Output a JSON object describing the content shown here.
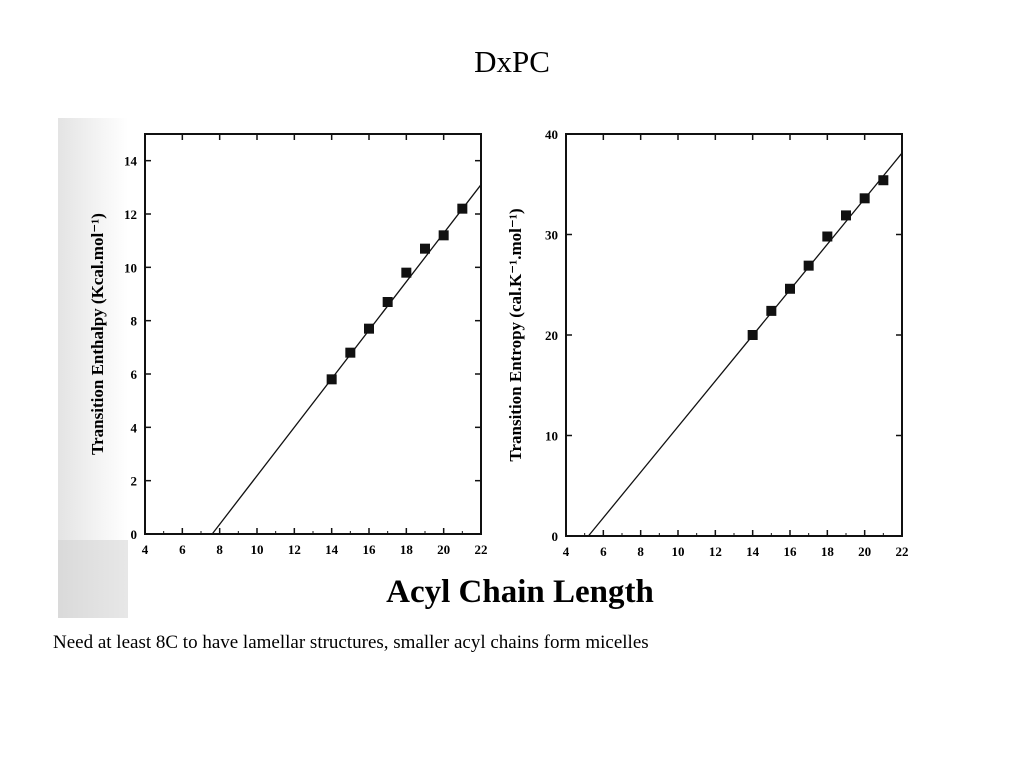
{
  "slide": {
    "title": "DxPC",
    "caption": "Need at least 8C to have lamellar structures, smaller acyl chains form micelles"
  },
  "figure": {
    "shared_xlabel": "Acyl Chain Length"
  },
  "chart_data": [
    {
      "type": "scatter",
      "title": "",
      "xlabel": "",
      "ylabel": "Transition Enthalpy (Kcal.mol⁻¹)",
      "xlim": [
        4,
        22
      ],
      "ylim": [
        0,
        15
      ],
      "xticks": [
        4,
        6,
        8,
        10,
        12,
        14,
        16,
        18,
        20,
        22
      ],
      "yticks": [
        0,
        2,
        4,
        6,
        8,
        10,
        12,
        14
      ],
      "grid": false,
      "series": [
        {
          "x": [
            14,
            15,
            16,
            17,
            18,
            19,
            20,
            21
          ],
          "y": [
            5.8,
            6.8,
            7.7,
            8.7,
            9.8,
            10.7,
            11.2,
            12.2
          ]
        }
      ],
      "fit_line": {
        "x": [
          7.6,
          22
        ],
        "y": [
          0,
          13.1
        ]
      }
    },
    {
      "type": "scatter",
      "title": "",
      "xlabel": "",
      "ylabel": "Transition Entropy (cal.K⁻¹.mol⁻¹)",
      "xlim": [
        4,
        22
      ],
      "ylim": [
        0,
        40
      ],
      "xticks": [
        4,
        6,
        8,
        10,
        12,
        14,
        16,
        18,
        20,
        22
      ],
      "yticks": [
        0,
        10,
        20,
        30,
        40
      ],
      "grid": false,
      "series": [
        {
          "x": [
            14,
            15,
            16,
            17,
            18,
            19,
            20,
            21
          ],
          "y": [
            20.0,
            22.4,
            24.6,
            26.9,
            29.8,
            31.9,
            33.6,
            35.4
          ]
        }
      ],
      "fit_line": {
        "x": [
          5.2,
          22
        ],
        "y": [
          0,
          38.1
        ]
      }
    }
  ]
}
